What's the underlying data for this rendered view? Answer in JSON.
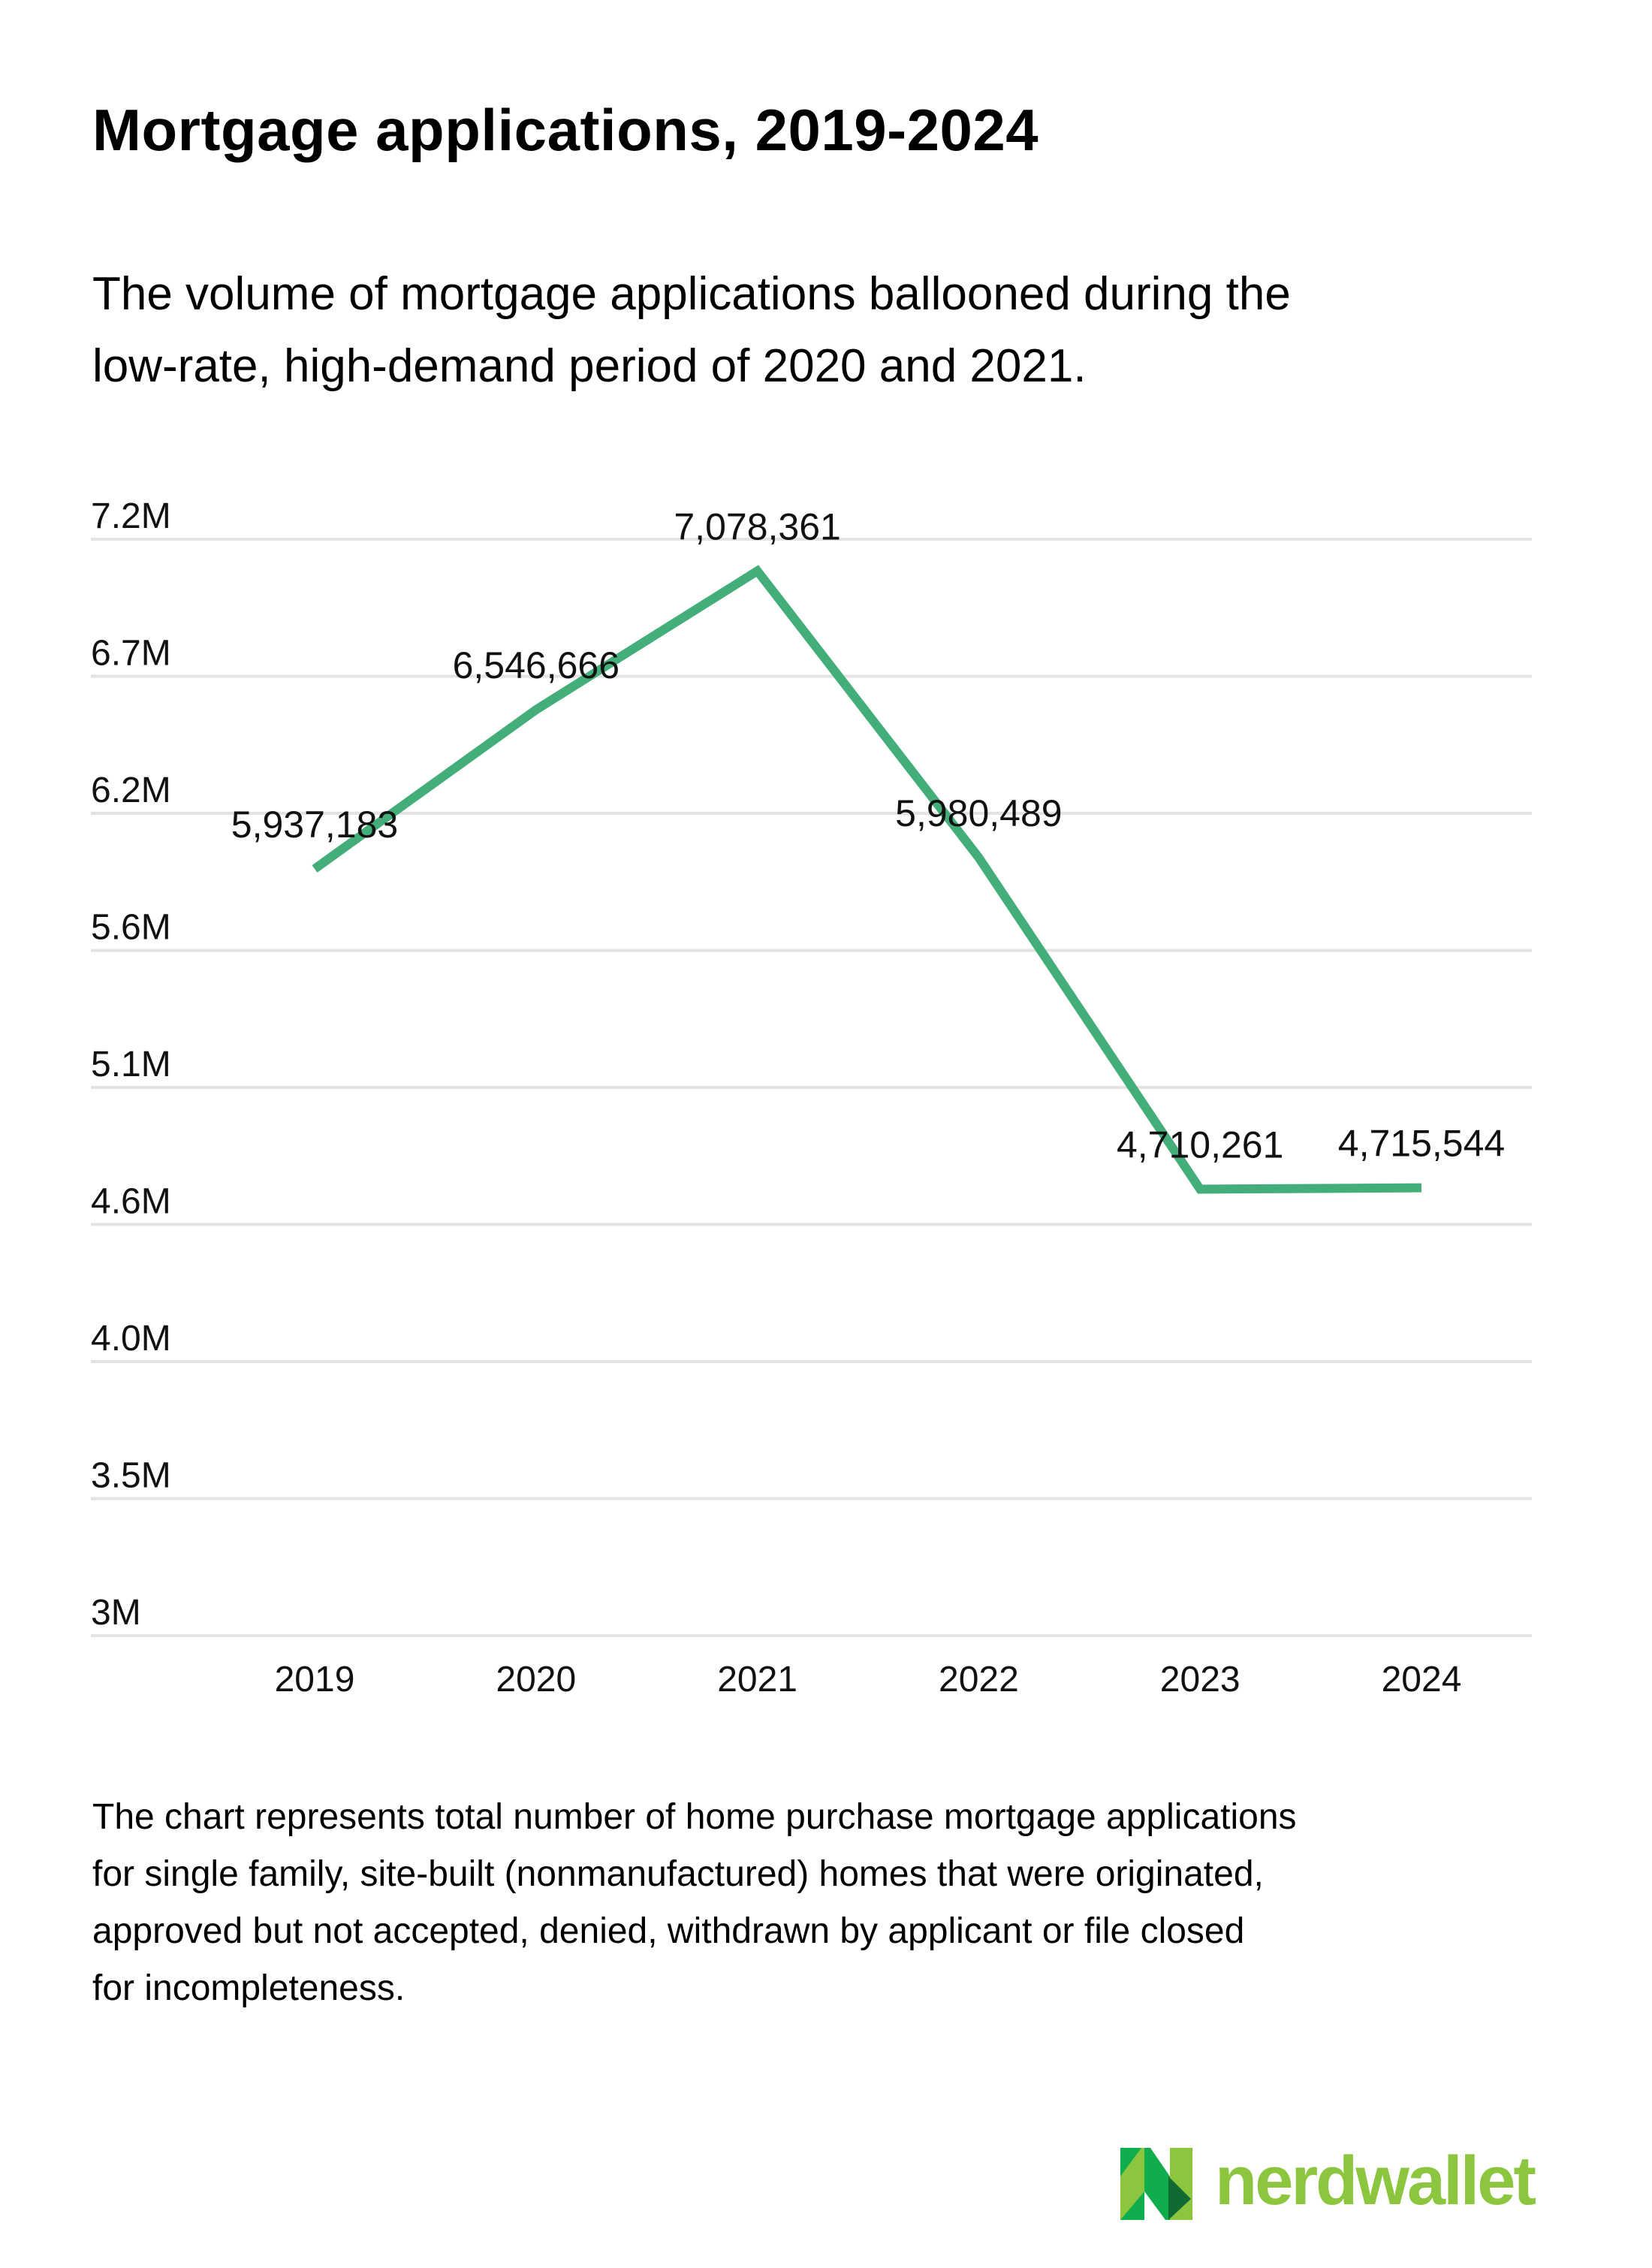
{
  "header": {
    "title": "Mortgage applications, 2019-2024",
    "subtitle_lines": [
      "The volume of mortgage applications ballooned during the",
      "low-rate, high-demand period of 2020 and 2021."
    ]
  },
  "chart_data": {
    "type": "line",
    "title": "Mortgage applications, 2019-2024",
    "subtitle": "The volume of mortgage applications ballooned during the low-rate, high-demand period of 2020 and 2021.",
    "xlabel": "",
    "ylabel": "",
    "categories": [
      "2019",
      "2020",
      "2021",
      "2022",
      "2023",
      "2024"
    ],
    "series": [
      {
        "name": "Mortgage applications",
        "color": "#44ae7b",
        "values": [
          5937183,
          6546666,
          7078361,
          5980489,
          4710261,
          4715544
        ],
        "data_labels": [
          "5,937,183",
          "6,546,666",
          "7,078,361",
          "5,980,489",
          "4,710,261",
          "4,715,544"
        ]
      }
    ],
    "ylim": [
      3000000,
      7200000
    ],
    "y_ticks": [
      7200000,
      6675000,
      6150000,
      5625000,
      5100000,
      4575000,
      4050000,
      3525000,
      3000000
    ],
    "y_tick_labels": [
      "7.2M",
      "6.7M",
      "6.2M",
      "5.6M",
      "5.1M",
      "4.6M",
      "4.0M",
      "3.5M",
      "3M"
    ],
    "grid": true,
    "legend": "none",
    "gridline_color": "#e3e3e3"
  },
  "footnote_lines": [
    "The chart represents total number of home purchase mortgage applications",
    "for single family, site-built (nonmanufactured) homes that were originated,",
    "approved but not accepted, denied, withdrawn by applicant or file closed",
    "for incompleteness."
  ],
  "branding": {
    "logo_text": "nerdwallet",
    "logo_icon": "nerdwallet-n-icon",
    "colors": {
      "light_green": "#8cc63f",
      "mid_green": "#10ad4d",
      "dark_green": "#0f6b33"
    }
  }
}
